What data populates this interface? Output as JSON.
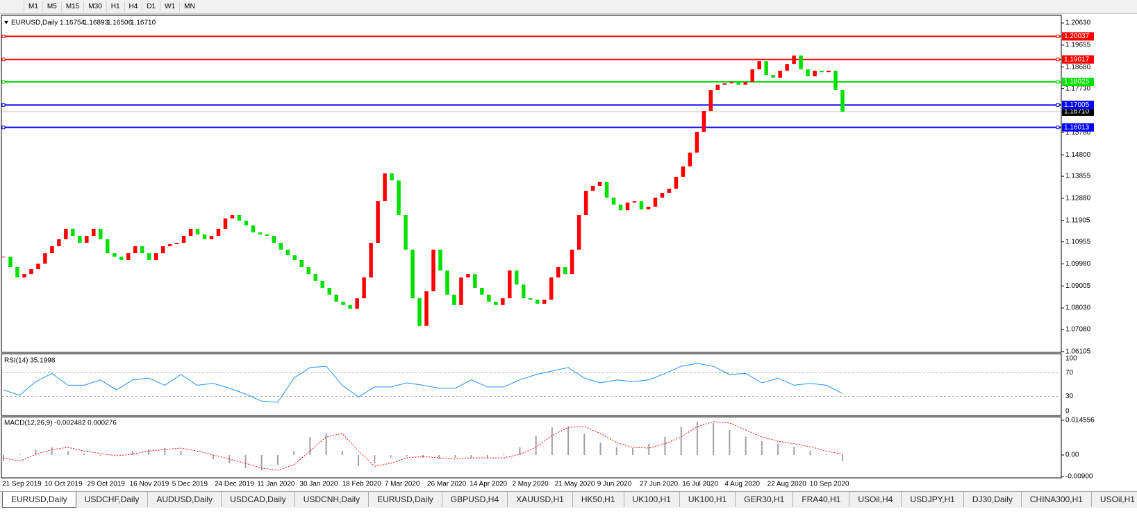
{
  "toolbar": {
    "timeframes": [
      "M1",
      "M5",
      "M15",
      "M30",
      "H1",
      "H4",
      "D1",
      "W1",
      "MN"
    ]
  },
  "chart_data": [
    {
      "type": "candlestick",
      "title": "EURUSD,Daily",
      "ohlc": [
        "1.16754",
        "1.16893",
        "1.16506",
        "1.16710"
      ],
      "up_color": "#ff0000",
      "down_color": "#00e000",
      "values": [
        1.103,
        1.0984,
        1.0938,
        1.0953,
        1.0975,
        1.0999,
        1.1045,
        1.1076,
        1.1107,
        1.1153,
        1.1122,
        1.1091,
        1.1122,
        1.1153,
        1.1107,
        1.1045,
        1.103,
        1.1015,
        1.1045,
        1.1076,
        1.1045,
        1.1015,
        1.1045,
        1.1076,
        1.1085,
        1.1091,
        1.1122,
        1.1153,
        1.1128,
        1.1107,
        1.1122,
        1.1153,
        1.1199,
        1.1214,
        1.1189,
        1.1168,
        1.1137,
        1.1128,
        1.1122,
        1.1091,
        1.1061,
        1.1036,
        1.1015,
        1.0984,
        1.0953,
        1.0923,
        1.0892,
        1.0862,
        1.0831,
        1.0816,
        1.08,
        1.0846,
        1.0938,
        1.1091,
        1.1275,
        1.1398,
        1.1367,
        1.1214,
        1.1061,
        1.0846,
        1.0724,
        1.0877,
        1.1061,
        1.0969,
        1.0862,
        1.0816,
        1.0938,
        1.0953,
        1.0892,
        1.0862,
        1.0831,
        1.0816,
        1.0846,
        1.0969,
        1.0907,
        1.0846,
        1.084,
        1.0822,
        1.084,
        1.0938,
        1.0984,
        1.0953,
        1.1061,
        1.1214,
        1.1321,
        1.1343,
        1.1361,
        1.1291,
        1.126,
        1.1235,
        1.1269,
        1.1275,
        1.1239,
        1.1251,
        1.1291,
        1.1312,
        1.133,
        1.1383,
        1.1429,
        1.149,
        1.1582,
        1.1674,
        1.1766,
        1.179,
        1.1796,
        1.1802,
        1.179,
        1.1802,
        1.1858,
        1.1894,
        1.1833,
        1.1821,
        1.1852,
        1.1882,
        1.1919,
        1.1858,
        1.1827,
        1.1852,
        1.1845,
        1.1852,
        1.1766,
        1.1671
      ],
      "ylim": [
        1.0607,
        1.2097
      ],
      "yticks": [
        {
          "value": 1.2063,
          "label": "1.20630"
        },
        {
          "value": 1.19655,
          "label": "1.19655"
        },
        {
          "value": 1.1868,
          "label": "1.18680"
        },
        {
          "value": 1.1773,
          "label": "1.17730"
        },
        {
          "value": 1.1578,
          "label": "1.15780"
        },
        {
          "value": 1.148,
          "label": "1.14800"
        },
        {
          "value": 1.13855,
          "label": "1.13855"
        },
        {
          "value": 1.1288,
          "label": "1.12880"
        },
        {
          "value": 1.11905,
          "label": "1.11905"
        },
        {
          "value": 1.10955,
          "label": "1.10955"
        },
        {
          "value": 1.0998,
          "label": "1.09980"
        },
        {
          "value": 1.09005,
          "label": "1.09005"
        },
        {
          "value": 1.0803,
          "label": "1.08030"
        },
        {
          "value": 1.0708,
          "label": "1.07080"
        },
        {
          "value": 1.06105,
          "label": "1.06105"
        }
      ],
      "levels": [
        {
          "value": 1.20037,
          "label": "1.20037",
          "color": "#ff0000"
        },
        {
          "value": 1.19017,
          "label": "1.19017",
          "color": "#ff0000"
        },
        {
          "value": 1.18025,
          "label": "1.18025",
          "color": "#00e000"
        },
        {
          "value": 1.17005,
          "label": "1.17005",
          "color": "#0000ff"
        },
        {
          "value": 1.16013,
          "label": "1.16013",
          "color": "#0000ff"
        }
      ],
      "current": {
        "value": 1.1671,
        "label": "1.16710"
      },
      "date_labels": [
        "21 Sep 2019",
        "10 Oct 2019",
        "29 Oct 2019",
        "16 Nov 2019",
        "5 Dec 2019",
        "24 Dec 2019",
        "11 Jan 2020",
        "30 Jan 2020",
        "18 Feb 2020",
        "7 Mar 2020",
        "26 Mar 2020",
        "14 Apr 2020",
        "2 May 2020",
        "21 May 2020",
        "9 Jun 2020",
        "27 Jun 2020",
        "16 Jul 2020",
        "4 Aug 2020",
        "22 Aug 2020",
        "10 Sep 2020"
      ]
    },
    {
      "type": "line",
      "title": "RSI(14) 35.1998",
      "color": "#1e90ff",
      "values": [
        41,
        32,
        55,
        69,
        49,
        49,
        58,
        41,
        58,
        61,
        49,
        67,
        49,
        52,
        44,
        34,
        22,
        20,
        61,
        79,
        81,
        49,
        29,
        46,
        46,
        53,
        49,
        44,
        44,
        58,
        46,
        46,
        58,
        67,
        73,
        79,
        61,
        53,
        58,
        55,
        58,
        69,
        81,
        86,
        81,
        67,
        69,
        53,
        61,
        49,
        52,
        49,
        35
      ],
      "ylim": [
        0,
        100
      ],
      "yticks": [
        100,
        70,
        30,
        0
      ]
    },
    {
      "type": "macd",
      "title": "MACD(12,26,9) -0.002482 0.000276",
      "hist_color": "#a0a0a0",
      "signal_color": "#ff0000",
      "histogram": [
        -0.0026,
        0.0003,
        0.0023,
        0.0032,
        0.0017,
        0.0006,
        -0.0003,
        0.0003,
        0.0017,
        0.0023,
        0.0029,
        0.0017,
        0,
        -0.0017,
        -0.0035,
        -0.0055,
        -0.0064,
        -0.0041,
        0.0017,
        0.0076,
        0.009,
        0.0017,
        -0.0047,
        -0.0035,
        -0.0012,
        -0.0006,
        -0.0012,
        -0.0017,
        -0.0012,
        -0.0012,
        -0.0012,
        0.0003,
        0.0032,
        0.0082,
        0.0116,
        0.0119,
        0.009,
        0.0052,
        0.0032,
        0.0029,
        0.0047,
        0.0076,
        0.0119,
        0.014,
        0.0134,
        0.0105,
        0.0076,
        0.0058,
        0.0047,
        0.0035,
        0.0017,
        0.0003,
        -0.0025
      ],
      "signal": [
        -0.0012,
        -0.0026,
        0.0003,
        0.0023,
        0.0032,
        0.0017,
        0.0006,
        -0.0003,
        0.0003,
        0.0017,
        0.0023,
        0.0029,
        0.0017,
        0,
        -0.0017,
        -0.0035,
        -0.0055,
        -0.0064,
        -0.0041,
        0.0017,
        0.0076,
        0.009,
        0.0017,
        -0.0047,
        -0.0035,
        -0.0012,
        -0.0006,
        -0.0012,
        -0.0017,
        -0.0012,
        -0.0012,
        -0.0012,
        0.0003,
        0.0032,
        0.0082,
        0.0116,
        0.0119,
        0.009,
        0.0052,
        0.0032,
        0.0029,
        0.0047,
        0.0076,
        0.0119,
        0.014,
        0.0134,
        0.0105,
        0.0076,
        0.0058,
        0.0047,
        0.0035,
        0.0017,
        0.0003
      ],
      "ylim": [
        -0.0093,
        0.0157
      ],
      "yticks": [
        0.014556,
        {
          "value": 0,
          "label": "0.00"
        },
        {
          "value": -0.009,
          "label": "-0.00900"
        }
      ]
    }
  ],
  "tabs": [
    "EURUSD,Daily",
    "USDCHF,Daily",
    "AUDUSD,Daily",
    "USDCAD,Daily",
    "USDCNH,Daily",
    "EURUSD,Daily",
    "GBPUSD,H4",
    "XAUUSD,H1",
    "HK50,H1",
    "UK100,H1",
    "UK100,H1",
    "GER30,H1",
    "FRA40,H1",
    "USOil,H4",
    "USDJPY,H1",
    "DJ30,Daily",
    "CHINA300,H1",
    "USOil,H1"
  ]
}
